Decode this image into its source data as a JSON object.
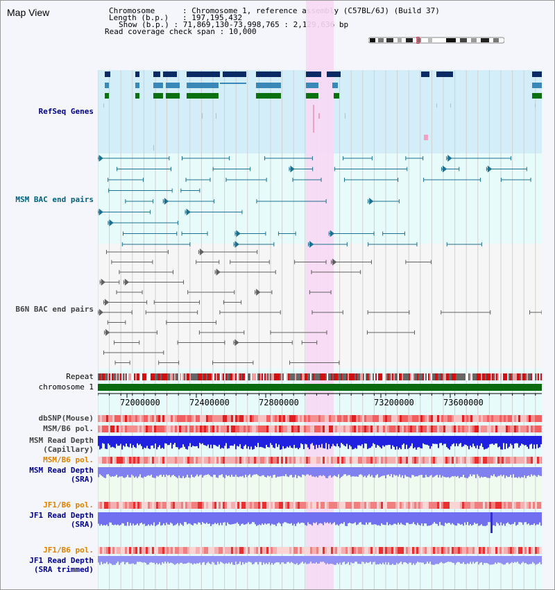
{
  "title": "Map View",
  "info": {
    "chromosome_key": "Chromosome",
    "chromosome_value": "Chromosome 1, reference assembly (C57BL/6J) (Build 37)",
    "length_key": "Length (b.p.)",
    "length_value": "197,195,432",
    "show_key": "Show (b.p.)",
    "show_value": "71,869,130-73,998,765 : 2,129,636 bp",
    "span_key": "Read coverage check span",
    "span_value": "10,000"
  },
  "tracks": {
    "refseq": "RefSeq Genes",
    "msm_bac": "MSM BAC end pairs",
    "b6n_bac": "B6N BAC end pairs",
    "repeat": "Repeat",
    "chromosome": "chromosome 1",
    "dbsnp": "dbSNP(Mouse)",
    "msm_b6_pol": "MSM/B6 pol.",
    "msm_depth_cap_1": "MSM Read Depth",
    "msm_depth_cap_2": "(Capillary)",
    "msm_b6_pol_2": "MSM/B6 pol.",
    "msm_depth_sra_1": "MSM Read Depth",
    "msm_depth_sra_2": "(SRA)",
    "jf1_b6_pol": "JF1/B6 pol.",
    "jf1_depth_sra_1": "JF1 Read Depth",
    "jf1_depth_sra_2": "(SRA)",
    "jf1_b6_pol_2": "JF1/B6 pol.",
    "jf1_depth_trim_1": "JF1 Read Depth",
    "jf1_depth_trim_2": "(SRA trimmed)"
  },
  "axis": {
    "ticks": [
      "72000000",
      "72400000",
      "72800000",
      "73200000",
      "73600000"
    ]
  },
  "colors": {
    "highlight": "#f8d8f4",
    "refseq_bg": "#d8f0f8",
    "gene_dark": "#0a2a66",
    "gene_mid": "#3a88b8",
    "gene_green": "#0a7010",
    "msm_bac": "#1a7090",
    "b6n_bac": "#606060",
    "chrom_green": "#0a6a10",
    "depth_blue": "#2020e0",
    "depth_light": "#8080f0"
  }
}
